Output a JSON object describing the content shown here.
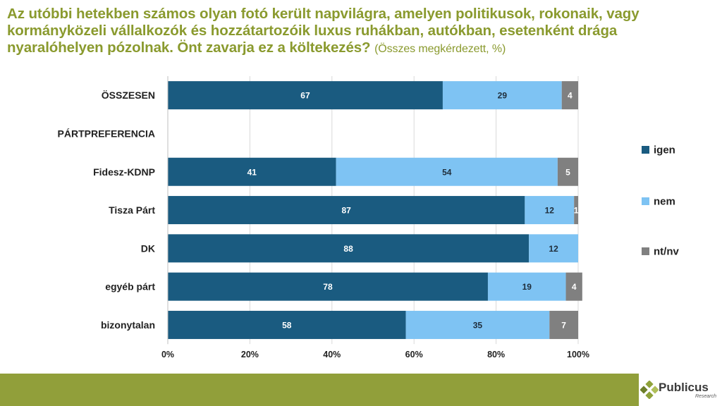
{
  "title": {
    "main": "Az utóbbi hetekben számos olyan fotó került napvilágra, amelyen politikusok, rokonaik, vagy kormányközeli vállalkozók és hozzátartozóik luxus ruhákban, autókban, esetenként drága nyaralóhelyen pózolnak. Önt zavarja ez a költekezés?",
    "subtitle": "(Összes megkérdezett, %)"
  },
  "logo": {
    "name": "Publicus",
    "sub": "Research"
  },
  "chart_data": {
    "type": "bar",
    "orientation": "horizontal",
    "stacked": true,
    "categories": [
      "ÖSSZESEN",
      "PÁRTPREFERENCIA",
      "Fidesz-KDNP",
      "Tisza Párt",
      "DK",
      "egyéb párt",
      "bizonytalan"
    ],
    "series": [
      {
        "name": "igen",
        "color": "#1a5b80",
        "values": [
          67,
          null,
          41,
          87,
          88,
          78,
          58
        ]
      },
      {
        "name": "nem",
        "color": "#7ec3f3",
        "values": [
          29,
          null,
          54,
          12,
          12,
          19,
          35
        ]
      },
      {
        "name": "nt/nv",
        "color": "#808080",
        "values": [
          4,
          null,
          5,
          1,
          0,
          4,
          7
        ]
      }
    ],
    "xlim": [
      0,
      100
    ],
    "xticks": [
      "0%",
      "20%",
      "40%",
      "60%",
      "80%",
      "100%"
    ],
    "grid": true,
    "legend": "right"
  }
}
